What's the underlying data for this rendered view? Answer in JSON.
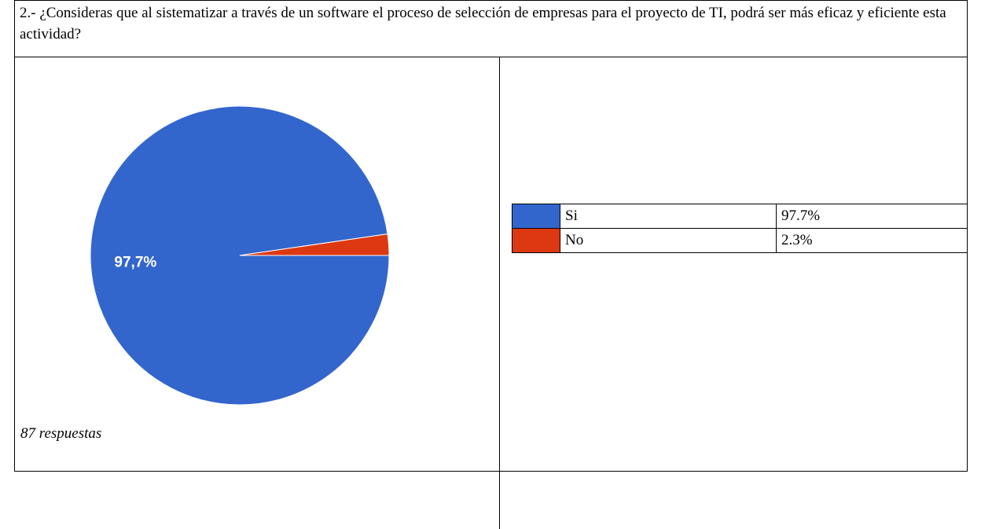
{
  "question": "2.- ¿Consideras que al sistematizar a través de un software el proceso de selección de empresas para el proyecto de TI, podrá ser más eficaz y eficiente esta actividad?",
  "chart": {
    "type": "pie",
    "categories": [
      "Si",
      "No"
    ],
    "values": [
      97.7,
      2.3
    ],
    "value_labels": [
      "97,7%",
      null
    ],
    "colors": [
      "#3366cc",
      "#dc3912"
    ],
    "footnote": "87 respuestas"
  },
  "legend_table": {
    "rows": [
      [
        "Si",
        "97.7%"
      ],
      [
        "No",
        "2.3%"
      ]
    ]
  }
}
